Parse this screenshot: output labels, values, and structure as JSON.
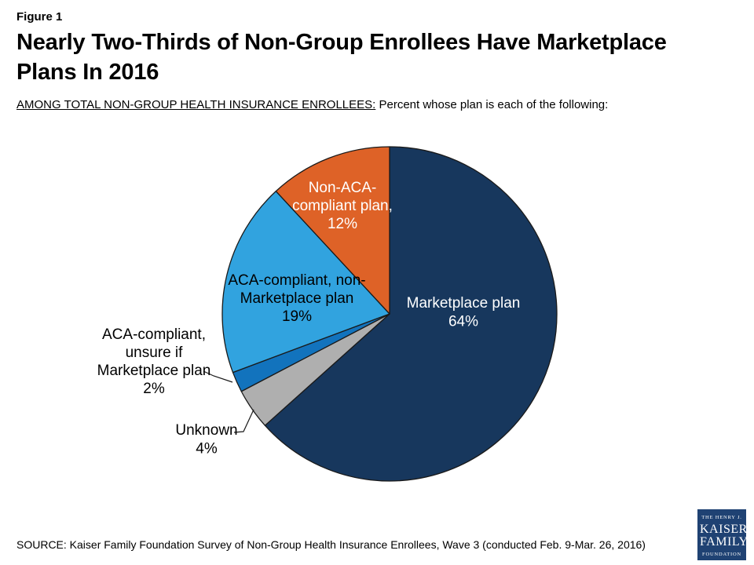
{
  "figure_label": "Figure 1",
  "title_line1": "Nearly Two-Thirds of Non-Group Enrollees Have Marketplace",
  "title_line2": "Plans In 2016",
  "subtitle_emphasis": "AMONG TOTAL NON-GROUP HEALTH INSURANCE ENROLLEES:",
  "subtitle_rest": " Percent whose plan is each of the following:",
  "source": "SOURCE: Kaiser Family Foundation Survey of Non-Group Health Insurance Enrollees, Wave 3 (conducted Feb. 9-Mar. 26, 2016)",
  "logo": {
    "line1": "THE HENRY J.",
    "line2": "KAISER",
    "line3": "FAMILY",
    "line4": "FOUNDATION",
    "bg_color": "#1F4273"
  },
  "chart_data": {
    "type": "pie",
    "title": "Percent whose plan is each of the following",
    "start_angle_deg": 0,
    "direction": "clockwise",
    "outline_color": "#1A1A1A",
    "slices": [
      {
        "label": "Marketplace plan",
        "value": 64,
        "color": "#17375D",
        "label_color": "#FFFFFF",
        "label_placement": "inside",
        "label_lines": [
          "Marketplace plan",
          "64%"
        ]
      },
      {
        "label": "Unknown",
        "value": 4,
        "color": "#AFAFAF",
        "label_color": "#000000",
        "label_placement": "outside",
        "label_lines": [
          "Unknown",
          "4%"
        ]
      },
      {
        "label": "ACA-compliant, unsure if Marketplace plan",
        "value": 2,
        "color": "#1273BD",
        "label_color": "#000000",
        "label_placement": "outside",
        "label_lines": [
          "ACA-compliant,",
          "unsure if",
          "Marketplace plan",
          "2%"
        ]
      },
      {
        "label": "ACA-compliant, non-Marketplace plan",
        "value": 19,
        "color": "#31A3DF",
        "label_color": "#000000",
        "label_placement": "inside",
        "label_lines": [
          "ACA-compliant, non-",
          "Marketplace plan",
          "19%"
        ]
      },
      {
        "label": "Non-ACA-compliant plan",
        "value": 12,
        "color": "#DE6227",
        "label_color": "#FFFFFF",
        "label_placement": "inside",
        "label_lines": [
          "Non-ACA-",
          "compliant plan,",
          "12%"
        ]
      }
    ]
  }
}
